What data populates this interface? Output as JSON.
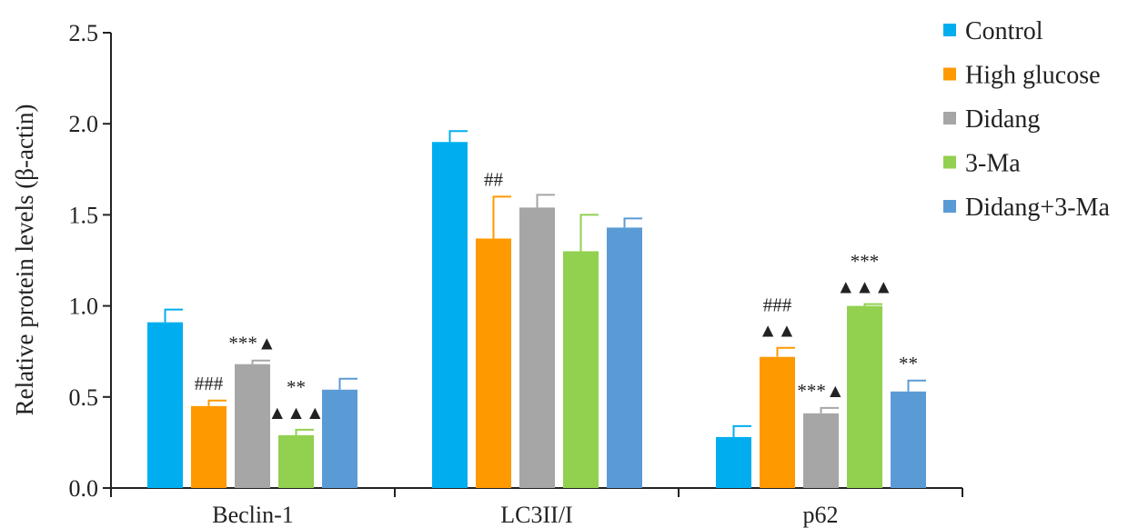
{
  "chart_data": {
    "type": "bar",
    "title": "",
    "xlabel": "",
    "ylabel": "Relative protein levels (β-actin)",
    "ylim": [
      0,
      2.5
    ],
    "y_ticks": [
      "0.0",
      "0.5",
      "1.0",
      "1.5",
      "2.0",
      "2.5"
    ],
    "grid": false,
    "legend_position": "top-right",
    "categories": [
      "Beclin-1",
      "LC3II/I",
      "p62"
    ],
    "series": [
      {
        "name": "Control",
        "color": "#00AEEF",
        "values": [
          0.91,
          1.9,
          0.28
        ],
        "errors": [
          0.07,
          0.06,
          0.06
        ]
      },
      {
        "name": "High glucose",
        "color": "#FF9900",
        "values": [
          0.45,
          1.37,
          0.72
        ],
        "errors": [
          0.03,
          0.23,
          0.05
        ]
      },
      {
        "name": "Didang",
        "color": "#A6A6A6",
        "values": [
          0.68,
          1.54,
          0.41
        ],
        "errors": [
          0.02,
          0.07,
          0.03
        ]
      },
      {
        "name": "3-Ma",
        "color": "#92D050",
        "values": [
          0.29,
          1.3,
          1.0
        ],
        "errors": [
          0.03,
          0.2,
          0.01
        ]
      },
      {
        "name": "Didang+3-Ma",
        "color": "#5B9BD5",
        "values": [
          0.54,
          1.43,
          0.53
        ],
        "errors": [
          0.06,
          0.05,
          0.06
        ]
      }
    ],
    "annotations": [
      {
        "category": 0,
        "series": 1,
        "lines": [
          "###"
        ]
      },
      {
        "category": 0,
        "series": 2,
        "lines": [
          "***▲"
        ]
      },
      {
        "category": 0,
        "series": 3,
        "lines": [
          "**",
          "▲▲▲"
        ]
      },
      {
        "category": 1,
        "series": 1,
        "lines": [
          "##"
        ]
      },
      {
        "category": 2,
        "series": 1,
        "lines": [
          "###",
          "▲▲"
        ]
      },
      {
        "category": 2,
        "series": 2,
        "lines": [
          "***▲"
        ]
      },
      {
        "category": 2,
        "series": 3,
        "lines": [
          "***",
          "▲▲▲"
        ]
      },
      {
        "category": 2,
        "series": 4,
        "lines": [
          "**"
        ]
      }
    ]
  }
}
